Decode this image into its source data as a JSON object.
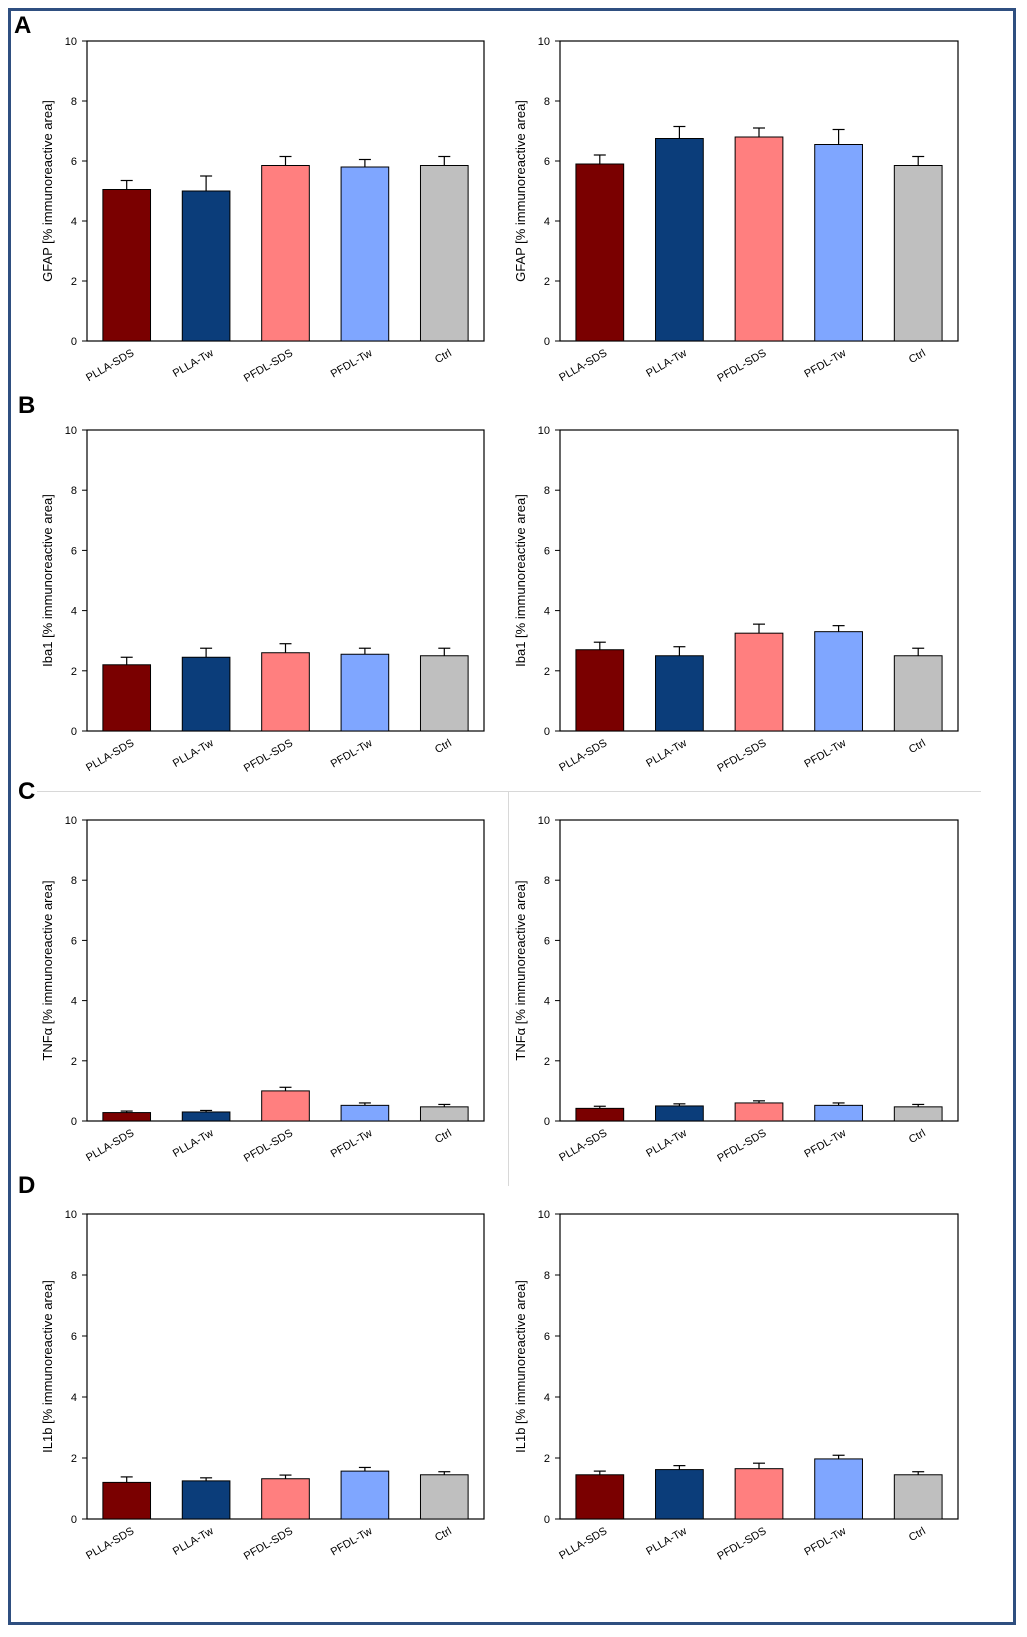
{
  "panels": [
    {
      "letter": "A"
    },
    {
      "letter": "B"
    },
    {
      "letter": "C"
    },
    {
      "letter": "D"
    }
  ],
  "colors": {
    "PLLA-SDS": "#7a0000",
    "PLLA-Tw": "#0b3d7a",
    "PFDL-SDS": "#ff7f7f",
    "PFDL-Tw": "#7fa6ff",
    "Ctrl": "#bfbfbf"
  },
  "chart_data": [
    {
      "type": "bar",
      "panel": "A",
      "column": "left",
      "ylabel": "GFAP [% immunoreactive area]",
      "ylim": [
        0,
        10
      ],
      "yticks": [
        "0",
        "2",
        "4",
        "6",
        "8",
        "10"
      ],
      "categories": [
        "PLLA-SDS",
        "PLLA-Tw",
        "PFDL-SDS",
        "PFDL-Tw",
        "Ctrl"
      ],
      "values": [
        5.05,
        5.0,
        5.85,
        5.8,
        5.85
      ],
      "errors": [
        0.3,
        0.5,
        0.3,
        0.25,
        0.3
      ]
    },
    {
      "type": "bar",
      "panel": "A",
      "column": "right",
      "ylabel": "GFAP [% immunoreactive area]",
      "ylim": [
        0,
        10
      ],
      "yticks": [
        "0",
        "2",
        "4",
        "6",
        "8",
        "10"
      ],
      "categories": [
        "PLLA-SDS",
        "PLLA-Tw",
        "PFDL-SDS",
        "PFDL-Tw",
        "Ctrl"
      ],
      "values": [
        5.9,
        6.75,
        6.8,
        6.55,
        5.85
      ],
      "errors": [
        0.3,
        0.4,
        0.3,
        0.5,
        0.3
      ]
    },
    {
      "type": "bar",
      "panel": "B",
      "column": "left",
      "ylabel": "Iba1 [% immunoreactive area]",
      "ylim": [
        0,
        10
      ],
      "yticks": [
        "0",
        "2",
        "4",
        "6",
        "8",
        "10"
      ],
      "categories": [
        "PLLA-SDS",
        "PLLA-Tw",
        "PFDL-SDS",
        "PFDL-Tw",
        "Ctrl"
      ],
      "values": [
        2.2,
        2.45,
        2.6,
        2.55,
        2.5
      ],
      "errors": [
        0.25,
        0.3,
        0.3,
        0.2,
        0.25
      ]
    },
    {
      "type": "bar",
      "panel": "B",
      "column": "right",
      "ylabel": "Iba1 [% immunoreactive area]",
      "ylim": [
        0,
        10
      ],
      "yticks": [
        "0",
        "2",
        "4",
        "6",
        "8",
        "10"
      ],
      "categories": [
        "PLLA-SDS",
        "PLLA-Tw",
        "PFDL-SDS",
        "PFDL-Tw",
        "Ctrl"
      ],
      "values": [
        2.7,
        2.5,
        3.25,
        3.3,
        2.5
      ],
      "errors": [
        0.25,
        0.3,
        0.3,
        0.2,
        0.25
      ]
    },
    {
      "type": "bar",
      "panel": "C",
      "column": "left",
      "ylabel": "TNFα [% immunoreactive area]",
      "ylim": [
        0,
        10
      ],
      "yticks": [
        "0",
        "2",
        "4",
        "6",
        "8",
        "10"
      ],
      "categories": [
        "PLLA-SDS",
        "PLLA-Tw",
        "PFDL-SDS",
        "PFDL-Tw",
        "Ctrl"
      ],
      "values": [
        0.28,
        0.3,
        1.0,
        0.52,
        0.47
      ],
      "errors": [
        0.05,
        0.05,
        0.12,
        0.08,
        0.08
      ]
    },
    {
      "type": "bar",
      "panel": "C",
      "column": "right",
      "ylabel": "TNFα [% immunoreactive area]",
      "ylim": [
        0,
        10
      ],
      "yticks": [
        "0",
        "2",
        "4",
        "6",
        "8",
        "10"
      ],
      "categories": [
        "PLLA-SDS",
        "PLLA-Tw",
        "PFDL-SDS",
        "PFDL-Tw",
        "Ctrl"
      ],
      "values": [
        0.42,
        0.5,
        0.6,
        0.52,
        0.47
      ],
      "errors": [
        0.07,
        0.07,
        0.07,
        0.08,
        0.08
      ]
    },
    {
      "type": "bar",
      "panel": "D",
      "column": "left",
      "ylabel": "IL1b [% immunoreactive area]",
      "ylim": [
        0,
        10
      ],
      "yticks": [
        "0",
        "2",
        "4",
        "6",
        "8",
        "10"
      ],
      "categories": [
        "PLLA-SDS",
        "PLLA-Tw",
        "PFDL-SDS",
        "PFDL-Tw",
        "Ctrl"
      ],
      "values": [
        1.2,
        1.25,
        1.32,
        1.57,
        1.45
      ],
      "errors": [
        0.18,
        0.1,
        0.12,
        0.12,
        0.1
      ]
    },
    {
      "type": "bar",
      "panel": "D",
      "column": "right",
      "ylabel": "IL1b [% immunoreactive area]",
      "ylim": [
        0,
        10
      ],
      "yticks": [
        "0",
        "2",
        "4",
        "6",
        "8",
        "10"
      ],
      "categories": [
        "PLLA-SDS",
        "PLLA-Tw",
        "PFDL-SDS",
        "PFDL-Tw",
        "Ctrl"
      ],
      "values": [
        1.45,
        1.62,
        1.65,
        1.97,
        1.45
      ],
      "errors": [
        0.12,
        0.13,
        0.18,
        0.12,
        0.1
      ]
    }
  ]
}
